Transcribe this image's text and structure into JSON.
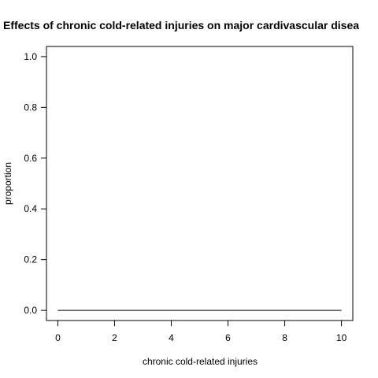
{
  "chart_data": {
    "type": "line",
    "title": "Effects of chronic cold-related injuries on major cardivascular disea",
    "xlabel": "chronic cold-related injuries",
    "ylabel": "proportion",
    "xlim": [
      -0.4,
      10.4
    ],
    "ylim": [
      -0.04,
      1.04
    ],
    "x_ticks": [
      0,
      2,
      4,
      6,
      8,
      10
    ],
    "y_ticks": [
      0.0,
      0.2,
      0.4,
      0.6,
      0.8,
      1.0
    ],
    "x_tick_labels": [
      "0",
      "2",
      "4",
      "6",
      "8",
      "10"
    ],
    "y_tick_labels": [
      "0.0",
      "0.2",
      "0.4",
      "0.6",
      "0.8",
      "1.0"
    ],
    "grid": false,
    "series": [
      {
        "x": [
          0,
          1,
          2,
          3,
          4,
          5,
          6,
          7,
          8,
          9,
          10
        ],
        "y": [
          0,
          0,
          0,
          0,
          0,
          0,
          0,
          0,
          0,
          0,
          0
        ],
        "color": "#000000"
      }
    ]
  }
}
